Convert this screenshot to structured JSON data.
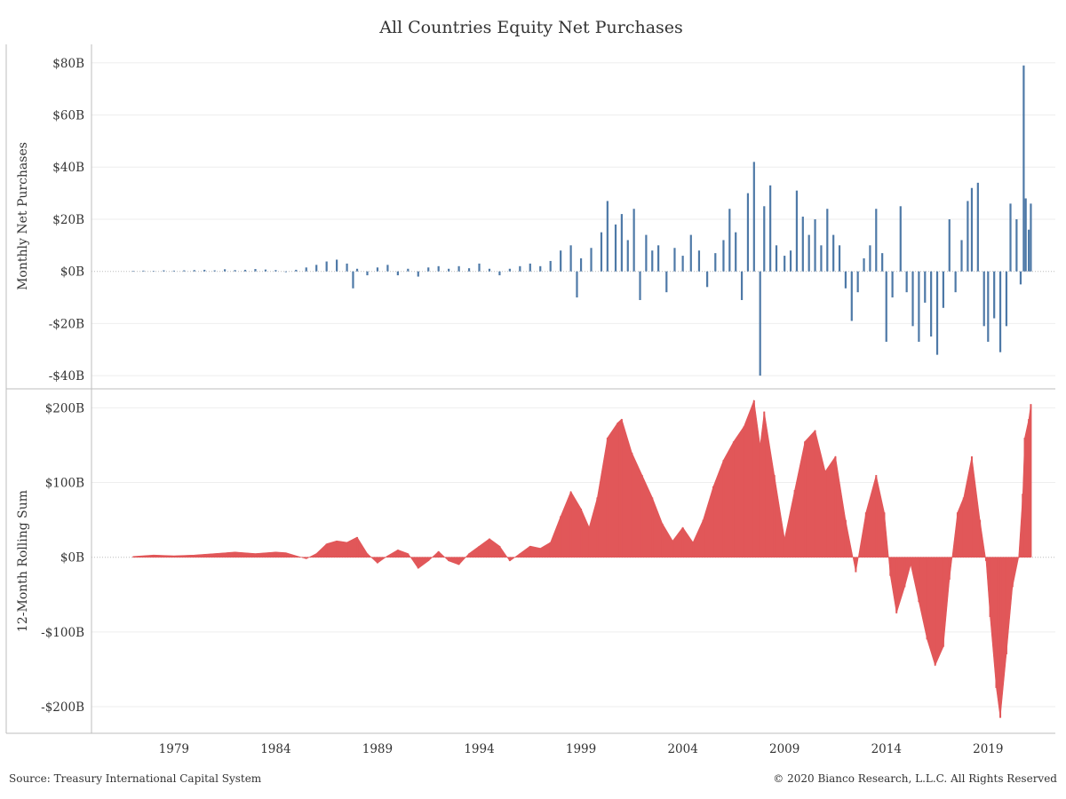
{
  "title": "All Countries Equity Net Purchases",
  "source": "Source: Treasury International Capital System",
  "copyright": "© 2020 Bianco Research, L.L.C. All Rights Reserved",
  "colors": {
    "monthly": "#4e79a7",
    "rolling": "#e15759",
    "grid": "#eeeeee",
    "axis": "#bdbdbd"
  },
  "x_ticks": [
    "1979",
    "1984",
    "1989",
    "1994",
    "1999",
    "2004",
    "2009",
    "2014",
    "2019"
  ],
  "chart_data": [
    {
      "type": "bar",
      "ylabel": "Monthly Net Purchases",
      "ylim": [
        -42,
        83
      ],
      "y_ticks": [
        {
          "value": 80,
          "label": "$80B"
        },
        {
          "value": 60,
          "label": "$60B"
        },
        {
          "value": 40,
          "label": "$40B"
        },
        {
          "value": 20,
          "label": "$20B"
        },
        {
          "value": 0,
          "label": "$0B"
        },
        {
          "value": -20,
          "label": "-$20B"
        },
        {
          "value": -40,
          "label": "-$40B"
        }
      ],
      "x_range": [
        1977,
        2020.5
      ],
      "points": [
        [
          1977.0,
          0.2
        ],
        [
          1977.5,
          0.3
        ],
        [
          1978.0,
          0.2
        ],
        [
          1978.5,
          0.4
        ],
        [
          1979.0,
          0.3
        ],
        [
          1979.5,
          0.4
        ],
        [
          1980.0,
          0.5
        ],
        [
          1980.5,
          0.6
        ],
        [
          1981.0,
          0.4
        ],
        [
          1981.5,
          0.8
        ],
        [
          1982.0,
          0.5
        ],
        [
          1982.5,
          0.6
        ],
        [
          1983.0,
          0.9
        ],
        [
          1983.5,
          0.7
        ],
        [
          1984.0,
          0.5
        ],
        [
          1984.5,
          -0.3
        ],
        [
          1985.0,
          0.6
        ],
        [
          1985.5,
          1.5
        ],
        [
          1986.0,
          2.5
        ],
        [
          1986.5,
          3.8
        ],
        [
          1987.0,
          4.5
        ],
        [
          1987.5,
          3.0
        ],
        [
          1987.8,
          -6.5
        ],
        [
          1988.0,
          1.0
        ],
        [
          1988.5,
          -1.5
        ],
        [
          1989.0,
          1.5
        ],
        [
          1989.5,
          2.5
        ],
        [
          1990.0,
          -1.5
        ],
        [
          1990.5,
          1.0
        ],
        [
          1991.0,
          -2.0
        ],
        [
          1991.5,
          1.5
        ],
        [
          1992.0,
          2.0
        ],
        [
          1992.5,
          1.0
        ],
        [
          1993.0,
          2.0
        ],
        [
          1993.5,
          1.2
        ],
        [
          1994.0,
          3.0
        ],
        [
          1994.5,
          1.0
        ],
        [
          1995.0,
          -1.5
        ],
        [
          1995.5,
          1.0
        ],
        [
          1996.0,
          2.0
        ],
        [
          1996.5,
          3.0
        ],
        [
          1997.0,
          2.0
        ],
        [
          1997.5,
          4.0
        ],
        [
          1998.0,
          8.0
        ],
        [
          1998.5,
          10.0
        ],
        [
          1998.8,
          -10.0
        ],
        [
          1999.0,
          5.0
        ],
        [
          1999.5,
          9.0
        ],
        [
          2000.0,
          15.0
        ],
        [
          2000.3,
          27.0
        ],
        [
          2000.7,
          18.0
        ],
        [
          2001.0,
          22.0
        ],
        [
          2001.3,
          12.0
        ],
        [
          2001.6,
          24.0
        ],
        [
          2001.9,
          -11.0
        ],
        [
          2002.2,
          14.0
        ],
        [
          2002.5,
          8.0
        ],
        [
          2002.8,
          10.0
        ],
        [
          2003.2,
          -8.0
        ],
        [
          2003.6,
          9.0
        ],
        [
          2004.0,
          6.0
        ],
        [
          2004.4,
          14.0
        ],
        [
          2004.8,
          8.0
        ],
        [
          2005.2,
          -6.0
        ],
        [
          2005.6,
          7.0
        ],
        [
          2006.0,
          12.0
        ],
        [
          2006.3,
          24.0
        ],
        [
          2006.6,
          15.0
        ],
        [
          2006.9,
          -11.0
        ],
        [
          2007.2,
          30.0
        ],
        [
          2007.5,
          42.0
        ],
        [
          2007.8,
          -40.0
        ],
        [
          2008.0,
          25.0
        ],
        [
          2008.3,
          33.0
        ],
        [
          2008.6,
          10.0
        ],
        [
          2009.0,
          6.0
        ],
        [
          2009.3,
          8.0
        ],
        [
          2009.6,
          31.0
        ],
        [
          2009.9,
          21.0
        ],
        [
          2010.2,
          14.0
        ],
        [
          2010.5,
          20.0
        ],
        [
          2010.8,
          10.0
        ],
        [
          2011.1,
          24.0
        ],
        [
          2011.4,
          14.0
        ],
        [
          2011.7,
          10.0
        ],
        [
          2012.0,
          -6.5
        ],
        [
          2012.3,
          -19.0
        ],
        [
          2012.6,
          -8.0
        ],
        [
          2012.9,
          5.0
        ],
        [
          2013.2,
          10.0
        ],
        [
          2013.5,
          24.0
        ],
        [
          2013.8,
          7.0
        ],
        [
          2014.0,
          -27.0
        ],
        [
          2014.3,
          -10.0
        ],
        [
          2014.7,
          25.0
        ],
        [
          2015.0,
          -8.0
        ],
        [
          2015.3,
          -21.0
        ],
        [
          2015.6,
          -27.0
        ],
        [
          2015.9,
          -12.0
        ],
        [
          2016.2,
          -25.0
        ],
        [
          2016.5,
          -32.0
        ],
        [
          2016.8,
          -14.0
        ],
        [
          2017.1,
          20.0
        ],
        [
          2017.4,
          -8.0
        ],
        [
          2017.7,
          12.0
        ],
        [
          2018.0,
          27.0
        ],
        [
          2018.2,
          32.0
        ],
        [
          2018.5,
          34.0
        ],
        [
          2018.8,
          -21.0
        ],
        [
          2019.0,
          -27.0
        ],
        [
          2019.3,
          -18.0
        ],
        [
          2019.6,
          -31.0
        ],
        [
          2019.9,
          -21.0
        ],
        [
          2020.1,
          26.0
        ],
        [
          2020.4,
          20.0
        ],
        [
          2020.6,
          -5.0
        ],
        [
          2020.75,
          79.0
        ],
        [
          2020.85,
          28.0
        ],
        [
          2021.0,
          16.0
        ],
        [
          2021.1,
          26.0
        ]
      ]
    },
    {
      "type": "area",
      "ylabel": "12-Month Rolling Sum",
      "ylim": [
        -225,
        210
      ],
      "y_ticks": [
        {
          "value": 200,
          "label": "$200B"
        },
        {
          "value": 100,
          "label": "$100B"
        },
        {
          "value": 0,
          "label": "$0B"
        },
        {
          "value": -100,
          "label": "-$100B"
        },
        {
          "value": -200,
          "label": "-$200B"
        }
      ],
      "points": [
        [
          1977.0,
          1
        ],
        [
          1978.0,
          3
        ],
        [
          1979.0,
          2
        ],
        [
          1980.0,
          3
        ],
        [
          1981.0,
          5
        ],
        [
          1982.0,
          7
        ],
        [
          1983.0,
          5
        ],
        [
          1984.0,
          7
        ],
        [
          1984.5,
          6
        ],
        [
          1985.0,
          2
        ],
        [
          1985.5,
          -2
        ],
        [
          1986.0,
          5
        ],
        [
          1986.5,
          18
        ],
        [
          1987.0,
          22
        ],
        [
          1987.5,
          20
        ],
        [
          1988.0,
          27
        ],
        [
          1988.5,
          5
        ],
        [
          1989.0,
          -8
        ],
        [
          1989.5,
          2
        ],
        [
          1990.0,
          10
        ],
        [
          1990.5,
          5
        ],
        [
          1991.0,
          -15
        ],
        [
          1991.5,
          -5
        ],
        [
          1992.0,
          8
        ],
        [
          1992.5,
          -5
        ],
        [
          1993.0,
          -10
        ],
        [
          1993.5,
          5
        ],
        [
          1994.0,
          15
        ],
        [
          1994.5,
          25
        ],
        [
          1995.0,
          15
        ],
        [
          1995.5,
          -5
        ],
        [
          1996.0,
          5
        ],
        [
          1996.5,
          15
        ],
        [
          1997.0,
          12
        ],
        [
          1997.5,
          20
        ],
        [
          1998.0,
          55
        ],
        [
          1998.5,
          88
        ],
        [
          1999.0,
          65
        ],
        [
          1999.4,
          40
        ],
        [
          1999.8,
          80
        ],
        [
          2000.3,
          160
        ],
        [
          2000.8,
          180
        ],
        [
          2001.0,
          185
        ],
        [
          2001.5,
          140
        ],
        [
          2002.0,
          110
        ],
        [
          2002.5,
          80
        ],
        [
          2003.0,
          45
        ],
        [
          2003.5,
          22
        ],
        [
          2004.0,
          40
        ],
        [
          2004.5,
          20
        ],
        [
          2005.0,
          50
        ],
        [
          2005.5,
          95
        ],
        [
          2006.0,
          130
        ],
        [
          2006.5,
          155
        ],
        [
          2007.0,
          175
        ],
        [
          2007.5,
          210
        ],
        [
          2007.8,
          150
        ],
        [
          2008.0,
          195
        ],
        [
          2008.5,
          110
        ],
        [
          2009.0,
          25
        ],
        [
          2009.5,
          90
        ],
        [
          2010.0,
          155
        ],
        [
          2010.5,
          170
        ],
        [
          2011.0,
          115
        ],
        [
          2011.5,
          135
        ],
        [
          2012.0,
          50
        ],
        [
          2012.5,
          -20
        ],
        [
          2013.0,
          60
        ],
        [
          2013.5,
          110
        ],
        [
          2013.9,
          60
        ],
        [
          2014.2,
          -25
        ],
        [
          2014.5,
          -75
        ],
        [
          2014.9,
          -40
        ],
        [
          2015.2,
          -10
        ],
        [
          2015.6,
          -60
        ],
        [
          2016.0,
          -110
        ],
        [
          2016.4,
          -145
        ],
        [
          2016.8,
          -120
        ],
        [
          2017.1,
          -30
        ],
        [
          2017.5,
          60
        ],
        [
          2017.8,
          80
        ],
        [
          2018.2,
          135
        ],
        [
          2018.6,
          50
        ],
        [
          2018.9,
          -5
        ],
        [
          2019.1,
          -80
        ],
        [
          2019.4,
          -175
        ],
        [
          2019.6,
          -215
        ],
        [
          2019.9,
          -130
        ],
        [
          2020.2,
          -40
        ],
        [
          2020.5,
          0
        ],
        [
          2020.7,
          85
        ],
        [
          2020.8,
          160
        ],
        [
          2021.0,
          185
        ],
        [
          2021.1,
          205
        ]
      ]
    }
  ]
}
